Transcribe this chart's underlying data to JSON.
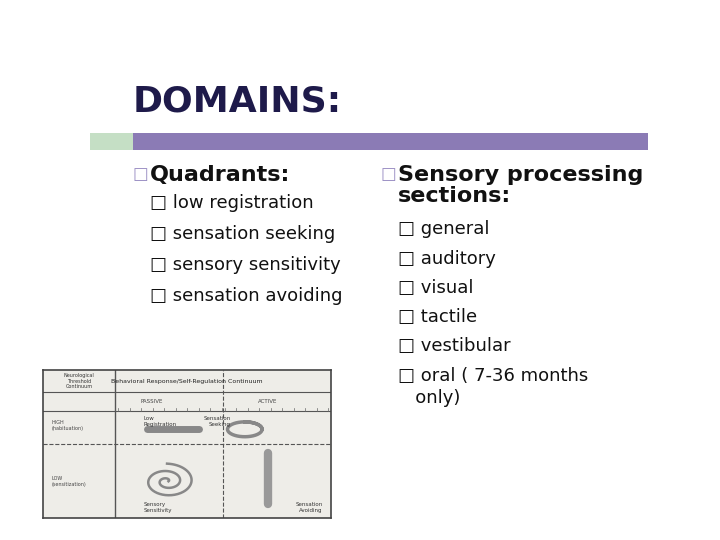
{
  "title": "DOMAINS:",
  "title_fontsize": 26,
  "title_color": "#1e1a4a",
  "banner_color": "#8B7BB5",
  "banner_left_color": "#c5dfc5",
  "bg_color": "#FFFFFF",
  "col1_header": "Quadrants:",
  "col1_header_fontsize": 16,
  "col1_items": [
    "low registration",
    "sensation seeking",
    "sensory sensitivity",
    "sensation avoiding"
  ],
  "col1_item_fontsize": 13,
  "col2_header_line1": "Sensory processing",
  "col2_header_line2": "sections:",
  "col2_header_fontsize": 16,
  "col2_items": [
    "general",
    "auditory",
    "visual",
    "tactile",
    "vestibular",
    "oral ( 7-36 months\n   only)"
  ],
  "col2_item_fontsize": 13,
  "text_color": "#111111",
  "header_bullet_color": "#9b8fc4",
  "sub_bullet_color": "#9b8fc4",
  "bullet_open": "□",
  "bullet_filled": "□"
}
